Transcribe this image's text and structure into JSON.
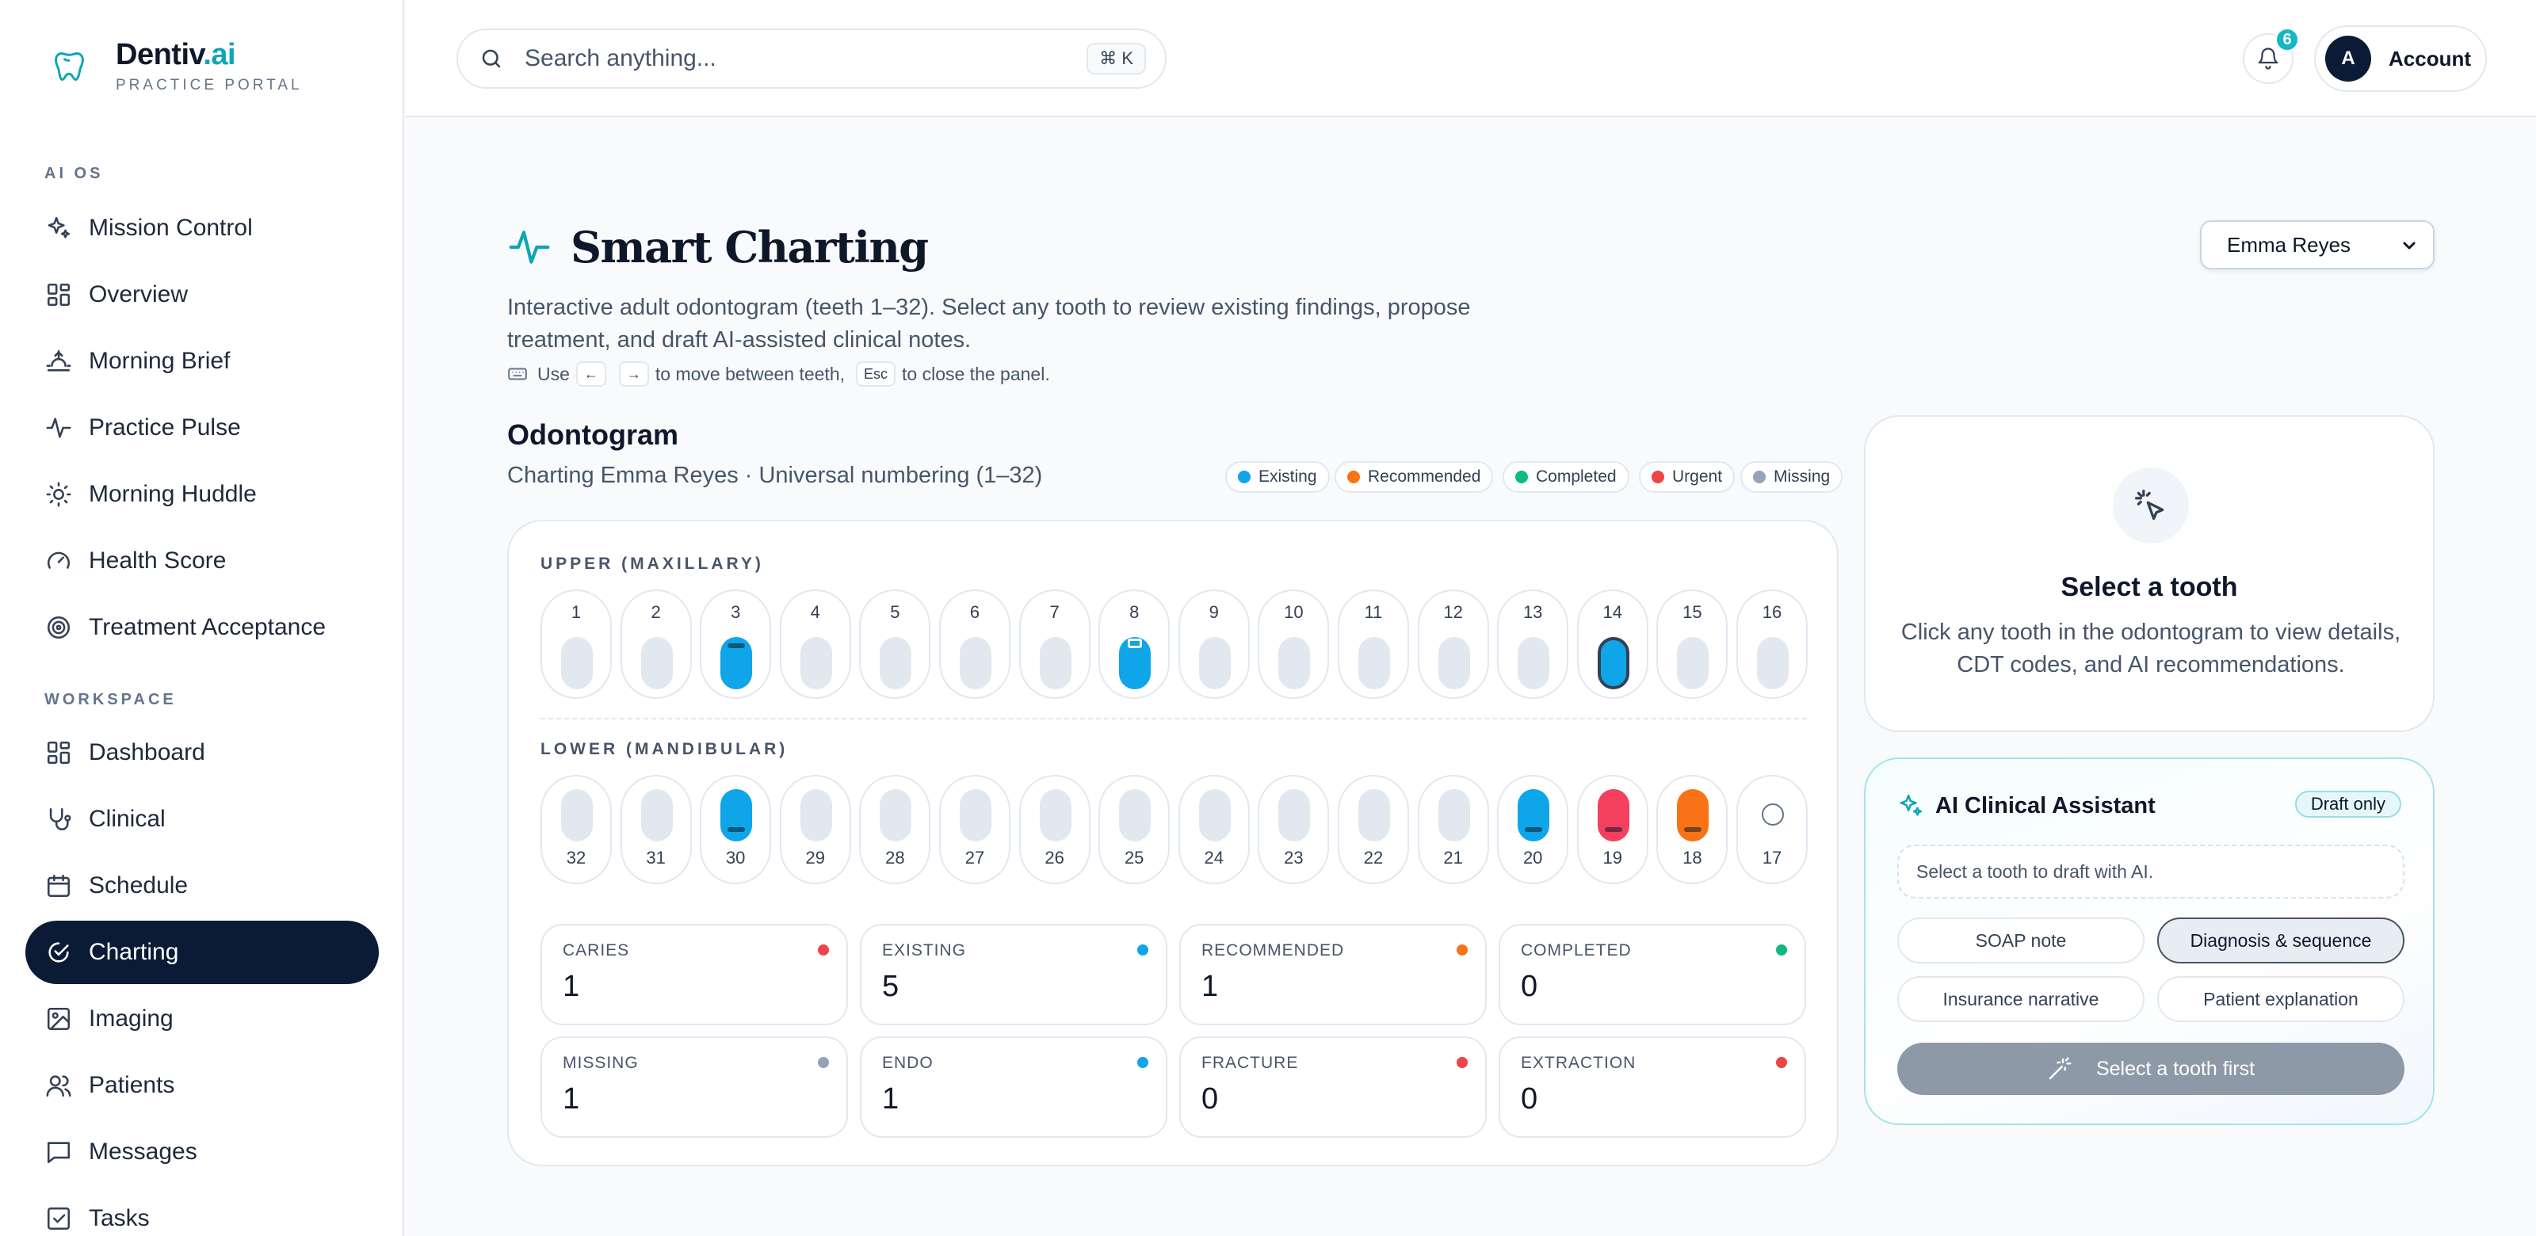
{
  "brand": {
    "name_main": "Dentiv",
    "name_accent": ".ai",
    "subtitle": "PRACTICE PORTAL"
  },
  "sidebar": {
    "sections": [
      {
        "title": "AI OS",
        "items": [
          {
            "label": "Mission Control",
            "icon": "sparkles-icon"
          },
          {
            "label": "Overview",
            "icon": "grid-icon"
          },
          {
            "label": "Morning Brief",
            "icon": "sunrise-icon"
          },
          {
            "label": "Practice Pulse",
            "icon": "pulse-icon"
          },
          {
            "label": "Morning Huddle",
            "icon": "sun-icon"
          },
          {
            "label": "Health Score",
            "icon": "gauge-icon"
          },
          {
            "label": "Treatment Acceptance",
            "icon": "target-icon"
          }
        ]
      },
      {
        "title": "WORKSPACE",
        "items": [
          {
            "label": "Dashboard",
            "icon": "dashboard-icon"
          },
          {
            "label": "Clinical",
            "icon": "stethoscope-icon"
          },
          {
            "label": "Schedule",
            "icon": "calendar-icon"
          },
          {
            "label": "Charting",
            "icon": "charting-icon",
            "active": true
          },
          {
            "label": "Imaging",
            "icon": "image-icon"
          },
          {
            "label": "Patients",
            "icon": "users-icon"
          },
          {
            "label": "Messages",
            "icon": "message-icon"
          },
          {
            "label": "Tasks",
            "icon": "checkbox-icon"
          }
        ]
      }
    ]
  },
  "topbar": {
    "search_placeholder": "Search anything...",
    "search_shortcut": "⌘ K",
    "notification_count": "6",
    "account_initial": "A",
    "account_label": "Account"
  },
  "header": {
    "title": "Smart Charting",
    "subtitle": "Interactive adult odontogram (teeth 1–32). Select any tooth to review existing findings, propose treatment, and draft AI-assisted clinical notes.",
    "hint_use": "Use",
    "hint_left_key": "←",
    "hint_right_key": "→",
    "hint_move": "to move between teeth,",
    "hint_esc_key": "Esc",
    "hint_close": "to close the panel.",
    "patient_select": "Emma Reyes"
  },
  "odontogram": {
    "title": "Odontogram",
    "subtitle": "Charting Emma Reyes · Universal numbering (1–32)",
    "legend": [
      {
        "label": "Existing",
        "color": "#0ea5e9"
      },
      {
        "label": "Recommended",
        "color": "#f97316"
      },
      {
        "label": "Completed",
        "color": "#10b981"
      },
      {
        "label": "Urgent",
        "color": "#ef4444"
      },
      {
        "label": "Missing",
        "color": "#94a3b8"
      }
    ],
    "upper_label": "UPPER (MAXILLARY)",
    "lower_label": "LOWER (MANDIBULAR)",
    "upper_teeth": [
      {
        "n": "1",
        "status": "none"
      },
      {
        "n": "2",
        "status": "none"
      },
      {
        "n": "3",
        "status": "existing"
      },
      {
        "n": "4",
        "status": "none"
      },
      {
        "n": "5",
        "status": "none"
      },
      {
        "n": "6",
        "status": "none"
      },
      {
        "n": "7",
        "status": "none"
      },
      {
        "n": "8",
        "status": "existing"
      },
      {
        "n": "9",
        "status": "none"
      },
      {
        "n": "10",
        "status": "none"
      },
      {
        "n": "11",
        "status": "none"
      },
      {
        "n": "12",
        "status": "none"
      },
      {
        "n": "13",
        "status": "none"
      },
      {
        "n": "14",
        "status": "existing-endo"
      },
      {
        "n": "15",
        "status": "none"
      },
      {
        "n": "16",
        "status": "none"
      }
    ],
    "lower_teeth": [
      {
        "n": "32",
        "status": "none"
      },
      {
        "n": "31",
        "status": "none"
      },
      {
        "n": "30",
        "status": "existing"
      },
      {
        "n": "29",
        "status": "none"
      },
      {
        "n": "28",
        "status": "none"
      },
      {
        "n": "27",
        "status": "none"
      },
      {
        "n": "26",
        "status": "none"
      },
      {
        "n": "25",
        "status": "none"
      },
      {
        "n": "24",
        "status": "none"
      },
      {
        "n": "23",
        "status": "none"
      },
      {
        "n": "22",
        "status": "none"
      },
      {
        "n": "21",
        "status": "none"
      },
      {
        "n": "20",
        "status": "existing"
      },
      {
        "n": "19",
        "status": "urgent"
      },
      {
        "n": "18",
        "status": "recommended"
      },
      {
        "n": "17",
        "status": "missing"
      }
    ],
    "stats": [
      {
        "label": "CARIES",
        "value": "1",
        "color": "#ef4444"
      },
      {
        "label": "EXISTING",
        "value": "5",
        "color": "#0ea5e9"
      },
      {
        "label": "RECOMMENDED",
        "value": "1",
        "color": "#f97316"
      },
      {
        "label": "COMPLETED",
        "value": "0",
        "color": "#10b981"
      },
      {
        "label": "MISSING",
        "value": "1",
        "color": "#94a3b8"
      },
      {
        "label": "ENDO",
        "value": "1",
        "color": "#0ea5e9"
      },
      {
        "label": "FRACTURE",
        "value": "0",
        "color": "#ef4444"
      },
      {
        "label": "EXTRACTION",
        "value": "0",
        "color": "#ef4444"
      }
    ]
  },
  "select_panel": {
    "title": "Select a tooth",
    "body": "Click any tooth in the odontogram to view details, CDT codes, and AI recommendations."
  },
  "ai_assistant": {
    "title": "AI Clinical Assistant",
    "badge": "Draft only",
    "input_placeholder": "Select a tooth to draft with AI.",
    "modes": [
      "SOAP note",
      "Diagnosis & sequence",
      "Insurance narrative",
      "Patient explanation"
    ],
    "selected_mode": "Diagnosis & sequence",
    "action_label": "Select a tooth first"
  },
  "colors": {
    "accent": "#0ea5b7",
    "navy": "#0b1b36",
    "existing": "#0ea5e9",
    "urgent": "#f43f5e",
    "recommended": "#f97316"
  }
}
